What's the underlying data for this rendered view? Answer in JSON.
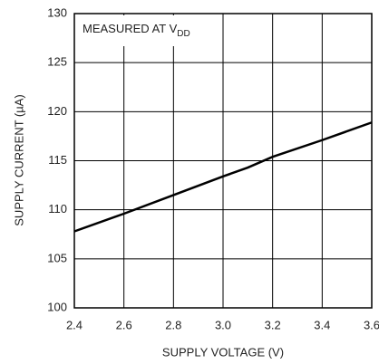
{
  "chart_data": {
    "type": "line",
    "annotation": "MEASURED AT V",
    "annotation_sub": "DD",
    "xlabel": "SUPPLY VOLTAGE (V)",
    "ylabel": "SUPPLY CURRENT (µA)",
    "x": [
      2.4,
      2.6,
      2.8,
      3.0,
      3.1,
      3.2,
      3.4,
      3.6
    ],
    "series": [
      {
        "name": "Supply current",
        "color": "#000000",
        "values": [
          107.8,
          109.6,
          111.5,
          113.4,
          114.3,
          115.4,
          117.1,
          118.9
        ]
      }
    ],
    "xlim": [
      2.4,
      3.6
    ],
    "xticks": [
      2.4,
      2.6,
      2.8,
      {
        "value": 3,
        "label": "3.0"
      },
      3.2,
      3.4,
      3.6
    ],
    "ylim": [
      100,
      130
    ],
    "yticks": [
      100,
      105,
      110,
      115,
      120,
      125,
      130
    ],
    "grid": true
  }
}
